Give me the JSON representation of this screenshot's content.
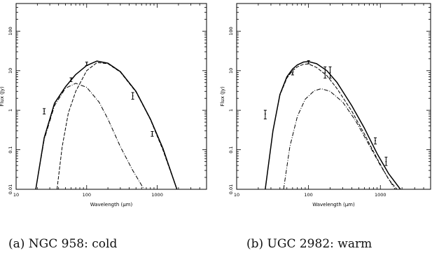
{
  "chart_data": [
    {
      "type": "line",
      "caption": "(a) NGC 958: cold",
      "xlabel": "Wavelength (μm)",
      "ylabel": "Flux (Jy)",
      "xscale": "log",
      "yscale": "log",
      "xlim": [
        10,
        5000
      ],
      "ylim": [
        0.01,
        500
      ],
      "xticks": [
        "10",
        "100",
        "1000"
      ],
      "yticks": [
        "0.01",
        "0.1",
        "1",
        "10",
        "100"
      ],
      "series": [
        {
          "style": "solid",
          "x": [
            19,
            25,
            35,
            50,
            70,
            100,
            140,
            200,
            300,
            500,
            800,
            1200,
            1900
          ],
          "y": [
            0.01,
            0.2,
            1.5,
            3.9,
            8.0,
            13.5,
            17.5,
            15.5,
            9.5,
            3.0,
            0.6,
            0.11,
            0.01
          ]
        },
        {
          "style": "dashed",
          "x": [
            38,
            45,
            55,
            70,
            100,
            140,
            200,
            300,
            500,
            800,
            1200,
            1900
          ],
          "y": [
            0.01,
            0.12,
            0.85,
            3.0,
            10.0,
            16.0,
            15.0,
            9.2,
            2.9,
            0.58,
            0.1,
            0.01
          ]
        },
        {
          "style": "dash-dot",
          "x": [
            19,
            25,
            35,
            50,
            70,
            100,
            150,
            200,
            300,
            450,
            650
          ],
          "y": [
            0.01,
            0.18,
            1.3,
            3.6,
            4.8,
            3.8,
            1.6,
            0.6,
            0.12,
            0.03,
            0.01
          ]
        }
      ],
      "points": [
        {
          "x": 25,
          "y": 0.95,
          "yerr": [
            0.8,
            1.1
          ]
        },
        {
          "x": 60,
          "y": 5.9,
          "yerr": [
            5.3,
            6.6
          ]
        },
        {
          "x": 100,
          "y": 15.0,
          "yerr": [
            13.5,
            16.5
          ]
        },
        {
          "x": 450,
          "y": 2.3,
          "yerr": [
            1.9,
            2.8
          ]
        },
        {
          "x": 850,
          "y": 0.25,
          "yerr": [
            0.22,
            0.29
          ]
        }
      ]
    },
    {
      "type": "line",
      "caption": "(b) UGC 2982: warm",
      "xlabel": "Wavelength (μm)",
      "ylabel": "Flux (Jy)",
      "xscale": "log",
      "yscale": "log",
      "xlim": [
        10,
        5000
      ],
      "ylim": [
        0.01,
        500
      ],
      "xticks": [
        "10",
        "100",
        "1000"
      ],
      "yticks": [
        "0.01",
        "0.1",
        "1",
        "10",
        "100"
      ],
      "series": [
        {
          "style": "solid",
          "x": [
            25,
            32,
            40,
            50,
            60,
            70,
            85,
            100,
            130,
            180,
            250,
            400,
            600,
            900,
            1300,
            1900
          ],
          "y": [
            0.01,
            0.3,
            2.5,
            7.0,
            11.0,
            14.0,
            16.5,
            17.0,
            15.0,
            10.0,
            5.0,
            1.3,
            0.35,
            0.08,
            0.025,
            0.01
          ]
        },
        {
          "style": "dashed",
          "x": [
            25,
            32,
            40,
            50,
            60,
            70,
            85,
            100,
            130,
            180,
            250,
            400,
            600,
            900,
            1300,
            1700
          ],
          "y": [
            0.01,
            0.3,
            2.4,
            6.5,
            10.0,
            12.5,
            14.5,
            14.8,
            12.0,
            7.5,
            3.5,
            0.95,
            0.25,
            0.06,
            0.018,
            0.01
          ]
        },
        {
          "style": "dash-dot",
          "x": [
            45,
            55,
            70,
            90,
            120,
            150,
            200,
            300,
            450,
            700,
            1000,
            1600
          ],
          "y": [
            0.01,
            0.12,
            0.7,
            1.9,
            3.1,
            3.5,
            3.0,
            1.6,
            0.55,
            0.13,
            0.04,
            0.01
          ]
        }
      ],
      "points": [
        {
          "x": 25,
          "y": 0.8,
          "yerr": [
            0.6,
            1.0
          ]
        },
        {
          "x": 60,
          "y": 8.5,
          "yerr": [
            7.8,
            9.3
          ]
        },
        {
          "x": 100,
          "y": 16.5,
          "yerr": [
            15.0,
            18.0
          ]
        },
        {
          "x": 170,
          "y": 9.0,
          "yerr": [
            6.5,
            12.5
          ]
        },
        {
          "x": 200,
          "y": 9.0,
          "yerr": [
            6.5,
            12.5
          ]
        },
        {
          "x": 850,
          "y": 0.17,
          "yerr": [
            0.14,
            0.2
          ]
        },
        {
          "x": 1200,
          "y": 0.05,
          "yerr": [
            0.04,
            0.065
          ]
        }
      ]
    }
  ]
}
